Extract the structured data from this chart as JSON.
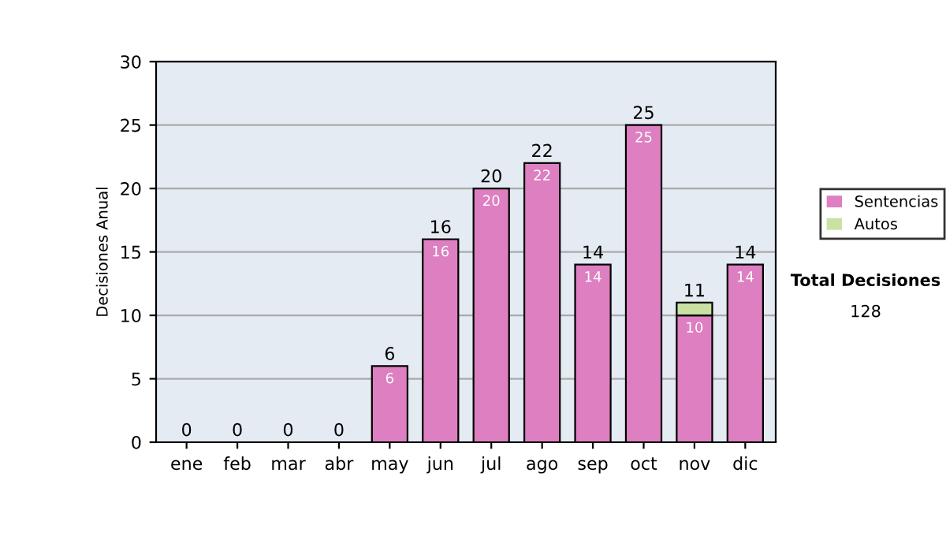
{
  "chart_data": {
    "type": "bar",
    "stacked": true,
    "ylabel": "Decisiones Anual",
    "categories": [
      "ene",
      "feb",
      "mar",
      "abr",
      "may",
      "jun",
      "jul",
      "ago",
      "sep",
      "oct",
      "nov",
      "dic"
    ],
    "series": [
      {
        "name": "Sentencias",
        "color": "#dd7fc1",
        "values": [
          0,
          0,
          0,
          0,
          6,
          16,
          20,
          22,
          14,
          25,
          10,
          14
        ],
        "value_labels": [
          null,
          null,
          null,
          null,
          "6",
          "16",
          "20",
          "22",
          "14",
          "25",
          "10",
          "14"
        ]
      },
      {
        "name": "Autos",
        "color": "#c9e2a2",
        "values": [
          0,
          0,
          0,
          0,
          0,
          0,
          0,
          0,
          0,
          0,
          1,
          0
        ]
      }
    ],
    "totals": [
      "0",
      "0",
      "0",
      "0",
      "6",
      "16",
      "20",
      "22",
      "14",
      "25",
      "11",
      "14"
    ],
    "ylim": [
      0,
      30
    ],
    "yticks": [
      0,
      5,
      10,
      15,
      20,
      25,
      30
    ],
    "grid": "y",
    "legend": "right",
    "annotations": [
      "Total Decisiones",
      "128"
    ]
  }
}
